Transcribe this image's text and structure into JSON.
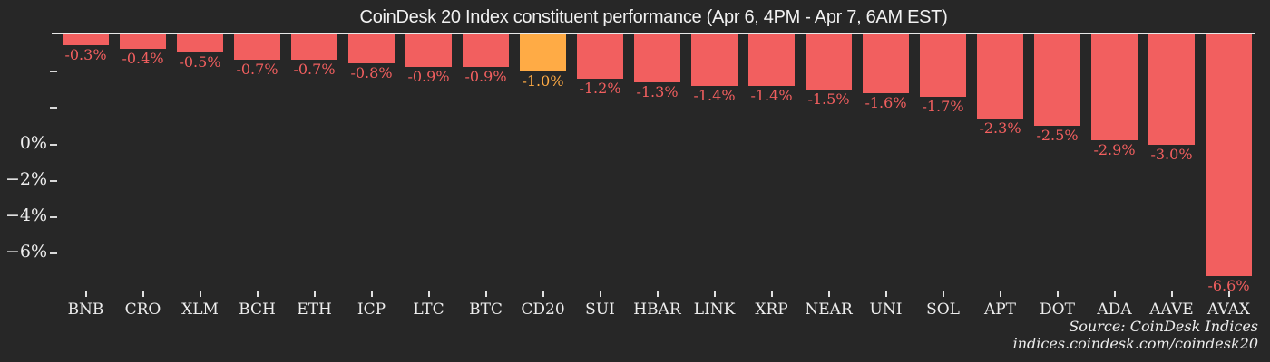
{
  "chart_data": {
    "type": "bar",
    "title": "CoinDesk 20 Index constituent performance (Apr 6, 4PM - Apr 7, 6AM EST)",
    "categories": [
      "BNB",
      "CRO",
      "XLM",
      "BCH",
      "ETH",
      "ICP",
      "LTC",
      "BTC",
      "CD20",
      "SUI",
      "HBAR",
      "LINK",
      "XRP",
      "NEAR",
      "UNI",
      "SOL",
      "APT",
      "DOT",
      "ADA",
      "AAVE",
      "AVAX"
    ],
    "values": [
      -0.3,
      -0.4,
      -0.5,
      -0.7,
      -0.7,
      -0.8,
      -0.9,
      -0.9,
      -1.0,
      -1.2,
      -1.3,
      -1.4,
      -1.4,
      -1.5,
      -1.6,
      -1.7,
      -2.3,
      -2.5,
      -2.9,
      -3.0,
      -6.6
    ],
    "bar_labels": [
      "-0.3%",
      "-0.4%",
      "-0.5%",
      "-0.7%",
      "-0.7%",
      "-0.8%",
      "-0.9%",
      "-0.9%",
      "-1.0%",
      "-1.2%",
      "-1.3%",
      "-1.4%",
      "-1.4%",
      "-1.5%",
      "-1.6%",
      "-1.7%",
      "-2.3%",
      "-2.5%",
      "-2.9%",
      "-3.0%",
      "-6.6%"
    ],
    "highlight_category": "CD20",
    "highlight_index": 8,
    "ytick_labels": [
      "0%",
      "−2%",
      "−4%",
      "−6%"
    ],
    "unlabeled_ytick_count": 2,
    "xlabel": "",
    "ylabel": "",
    "grid": false,
    "legend_position": "none",
    "bars_hang_from_top": true,
    "colors": {
      "background": "#272727",
      "bar": "#F25F5F",
      "highlight": "#FFAB45",
      "axis_line": "#E9E9E9",
      "text": "#EDEDED"
    }
  },
  "source": {
    "line1": "Source: CoinDesk Indices",
    "line2": "indices.coindesk.com/coindesk20"
  }
}
